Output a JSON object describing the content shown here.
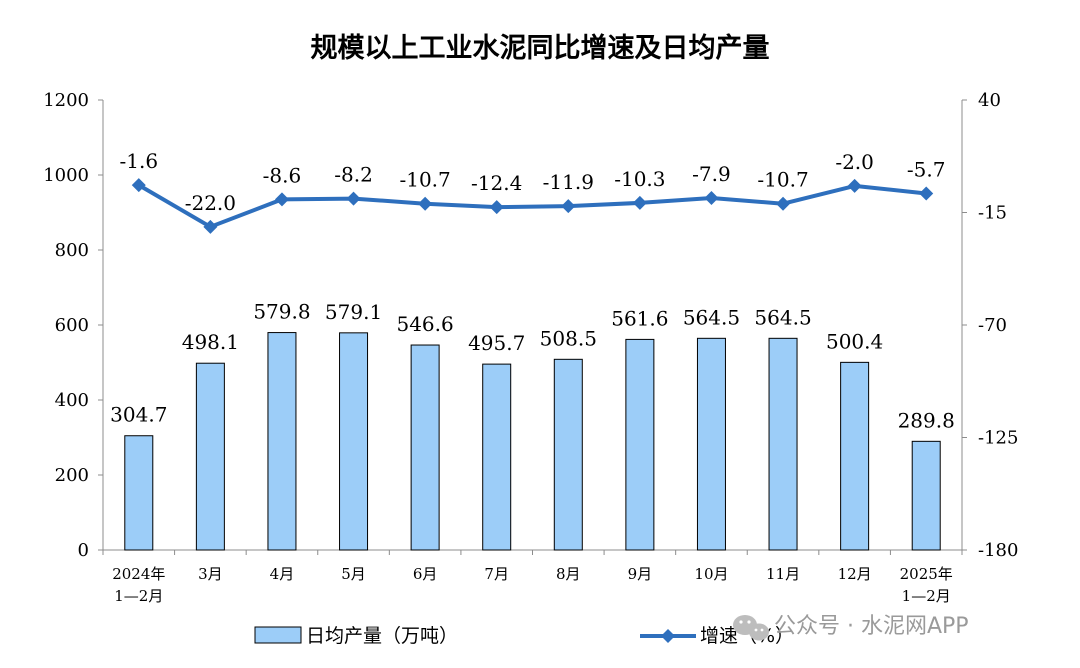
{
  "chart_data": {
    "type": "bar",
    "title": "规模以上工业水泥同比增速及日均产量",
    "categories": [
      [
        "2024年",
        "1—2月"
      ],
      [
        "3月"
      ],
      [
        "4月"
      ],
      [
        "5月"
      ],
      [
        "6月"
      ],
      [
        "7月"
      ],
      [
        "8月"
      ],
      [
        "9月"
      ],
      [
        "10月"
      ],
      [
        "11月"
      ],
      [
        "12月"
      ],
      [
        "2025年",
        "1—2月"
      ]
    ],
    "series": [
      {
        "name": "日均产量（万吨）",
        "type": "bar",
        "axis": "left",
        "values": [
          304.7,
          498.1,
          579.8,
          579.1,
          546.6,
          495.7,
          508.5,
          561.6,
          564.5,
          564.5,
          500.4,
          289.8
        ],
        "labels": [
          "304.7",
          "498.1",
          "579.8",
          "579.1",
          "546.6",
          "495.7",
          "508.5",
          "561.6",
          "564.5",
          "564.5",
          "500.4",
          "289.8"
        ]
      },
      {
        "name": "增速（%）",
        "type": "line",
        "axis": "right",
        "values": [
          -1.6,
          -22.0,
          -8.6,
          -8.2,
          -10.7,
          -12.4,
          -11.9,
          -10.3,
          -7.9,
          -10.7,
          -2.0,
          -5.7
        ],
        "labels": [
          "-1.6",
          "-22.0",
          "-8.6",
          "-8.2",
          "-10.7",
          "-12.4",
          "-11.9",
          "-10.3",
          "-7.9",
          "-10.7",
          "-2.0",
          "-5.7"
        ]
      }
    ],
    "y_left": {
      "min": 0,
      "max": 1200,
      "ticks": [
        "0",
        "200",
        "400",
        "600",
        "800",
        "1000",
        "1200"
      ]
    },
    "y_right": {
      "min": -180,
      "max": 40,
      "ticks": [
        "-180",
        "-125",
        "-70",
        "-15",
        "40"
      ]
    },
    "grid": false,
    "legend_position": "bottom",
    "colors": {
      "bar_fill": "#9ccdf8",
      "bar_stroke": "#000000",
      "line": "#2e6fbd",
      "axis": "#8c8c8c"
    }
  },
  "watermark": "公众号 · 水泥网APP"
}
